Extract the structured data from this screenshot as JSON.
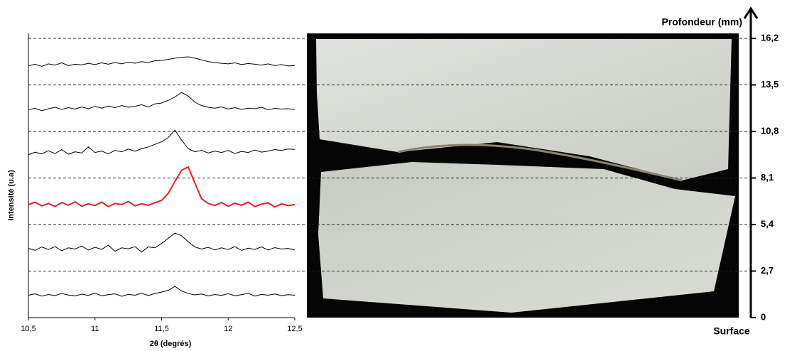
{
  "chart_data": {
    "type": "line",
    "xlabel": "2θ (degrés)",
    "ylabel": "Intensité (u.a)",
    "y_axis_title": "Profondeur (mm)",
    "y_axis_bottom_label": "Surface",
    "xlim": [
      10.5,
      12.5
    ],
    "xticks": [
      {
        "value": 10.5,
        "label": "10,5"
      },
      11,
      {
        "value": 11.5,
        "label": "11,5"
      },
      12,
      {
        "value": 12.5,
        "label": "12,5"
      }
    ],
    "ylim": [
      0,
      16.2
    ],
    "yticks": [
      0,
      {
        "value": 2.7,
        "label": "2,7"
      },
      {
        "value": 5.4,
        "label": "5,4"
      },
      {
        "value": 8.1,
        "label": "8,1"
      },
      {
        "value": 10.8,
        "label": "10,8"
      },
      {
        "value": 13.5,
        "label": "13,5"
      },
      {
        "value": 16.2,
        "label": "16,2"
      }
    ],
    "grid": "dashed",
    "x": [
      10.5,
      10.55,
      10.6,
      10.65,
      10.7,
      10.75,
      10.8,
      10.85,
      10.9,
      10.95,
      11,
      11.05,
      11.1,
      11.15,
      11.2,
      11.25,
      11.3,
      11.35,
      11.4,
      11.45,
      11.5,
      11.55,
      11.6,
      11.65,
      11.7,
      11.75,
      11.8,
      11.85,
      11.9,
      11.95,
      12,
      12.05,
      12.1,
      12.15,
      12.2,
      12.25,
      12.3,
      12.35,
      12.4,
      12.45,
      12.5
    ],
    "series": [
      {
        "color": "#000000",
        "values": [
          1.3,
          1.38,
          1.25,
          1.34,
          1.28,
          1.4,
          1.31,
          1.26,
          1.36,
          1.29,
          1.42,
          1.27,
          1.33,
          1.38,
          1.24,
          1.35,
          1.3,
          1.41,
          1.28,
          1.4,
          1.48,
          1.58,
          1.81,
          1.55,
          1.4,
          1.32,
          1.37,
          1.26,
          1.34,
          1.29,
          1.39,
          1.27,
          1.33,
          1.41,
          1.25,
          1.35,
          1.3,
          1.37,
          1.28,
          1.33,
          1.3
        ]
      },
      {
        "color": "#000000",
        "values": [
          4.02,
          3.9,
          4.1,
          3.95,
          4.12,
          3.88,
          4.05,
          3.98,
          4.15,
          3.92,
          4.08,
          3.96,
          4.2,
          3.85,
          4.05,
          3.99,
          4.12,
          3.8,
          4.1,
          4.05,
          4.3,
          4.6,
          4.9,
          4.75,
          4.4,
          4.1,
          3.98,
          4.08,
          3.92,
          4.05,
          3.95,
          4.12,
          3.9,
          4.03,
          3.96,
          4.1,
          3.92,
          4.06,
          3.98,
          4.02,
          3.92
        ]
      },
      {
        "color": "#e02020",
        "values": [
          6.55,
          6.7,
          6.48,
          6.62,
          6.45,
          6.68,
          6.52,
          6.72,
          6.46,
          6.6,
          6.5,
          6.7,
          6.44,
          6.62,
          6.56,
          6.74,
          6.48,
          6.6,
          6.52,
          6.66,
          6.8,
          7.2,
          7.9,
          8.55,
          8.74,
          7.8,
          6.9,
          6.62,
          6.5,
          6.68,
          6.45,
          6.64,
          6.52,
          6.7,
          6.44,
          6.58,
          6.66,
          6.42,
          6.6,
          6.5,
          6.56
        ]
      },
      {
        "color": "#000000",
        "values": [
          9.45,
          9.6,
          9.5,
          9.68,
          9.52,
          9.75,
          9.48,
          9.62,
          9.55,
          9.9,
          9.58,
          9.66,
          9.5,
          9.7,
          9.62,
          9.78,
          9.65,
          9.8,
          9.9,
          10.05,
          10.2,
          10.45,
          10.88,
          10.3,
          9.8,
          9.62,
          9.7,
          9.55,
          9.66,
          9.58,
          9.7,
          9.52,
          9.64,
          9.58,
          9.72,
          9.6,
          9.66,
          9.75,
          9.7,
          9.78,
          9.76
        ]
      },
      {
        "color": "#000000",
        "values": [
          12.05,
          12.15,
          12.0,
          12.12,
          12.2,
          12.08,
          12.18,
          12.1,
          12.22,
          12.12,
          12.25,
          12.15,
          12.28,
          12.18,
          12.3,
          12.2,
          12.26,
          12.35,
          12.22,
          12.4,
          12.45,
          12.6,
          12.8,
          13.07,
          12.85,
          12.5,
          12.3,
          12.2,
          12.15,
          12.22,
          12.1,
          12.18,
          12.08,
          12.15,
          12.12,
          12.2,
          12.06,
          12.14,
          12.1,
          12.12,
          12.08
        ]
      },
      {
        "color": "#000000",
        "values": [
          14.6,
          14.7,
          14.58,
          14.72,
          14.65,
          14.78,
          14.62,
          14.7,
          14.66,
          14.75,
          14.68,
          14.78,
          14.7,
          14.8,
          14.72,
          14.82,
          14.76,
          14.85,
          14.8,
          14.9,
          14.92,
          14.98,
          15.05,
          15.1,
          15.13,
          15.05,
          14.95,
          14.85,
          14.8,
          14.75,
          14.72,
          14.78,
          14.68,
          14.74,
          14.7,
          14.65,
          14.72,
          14.62,
          14.68,
          14.6,
          14.62
        ]
      }
    ]
  }
}
